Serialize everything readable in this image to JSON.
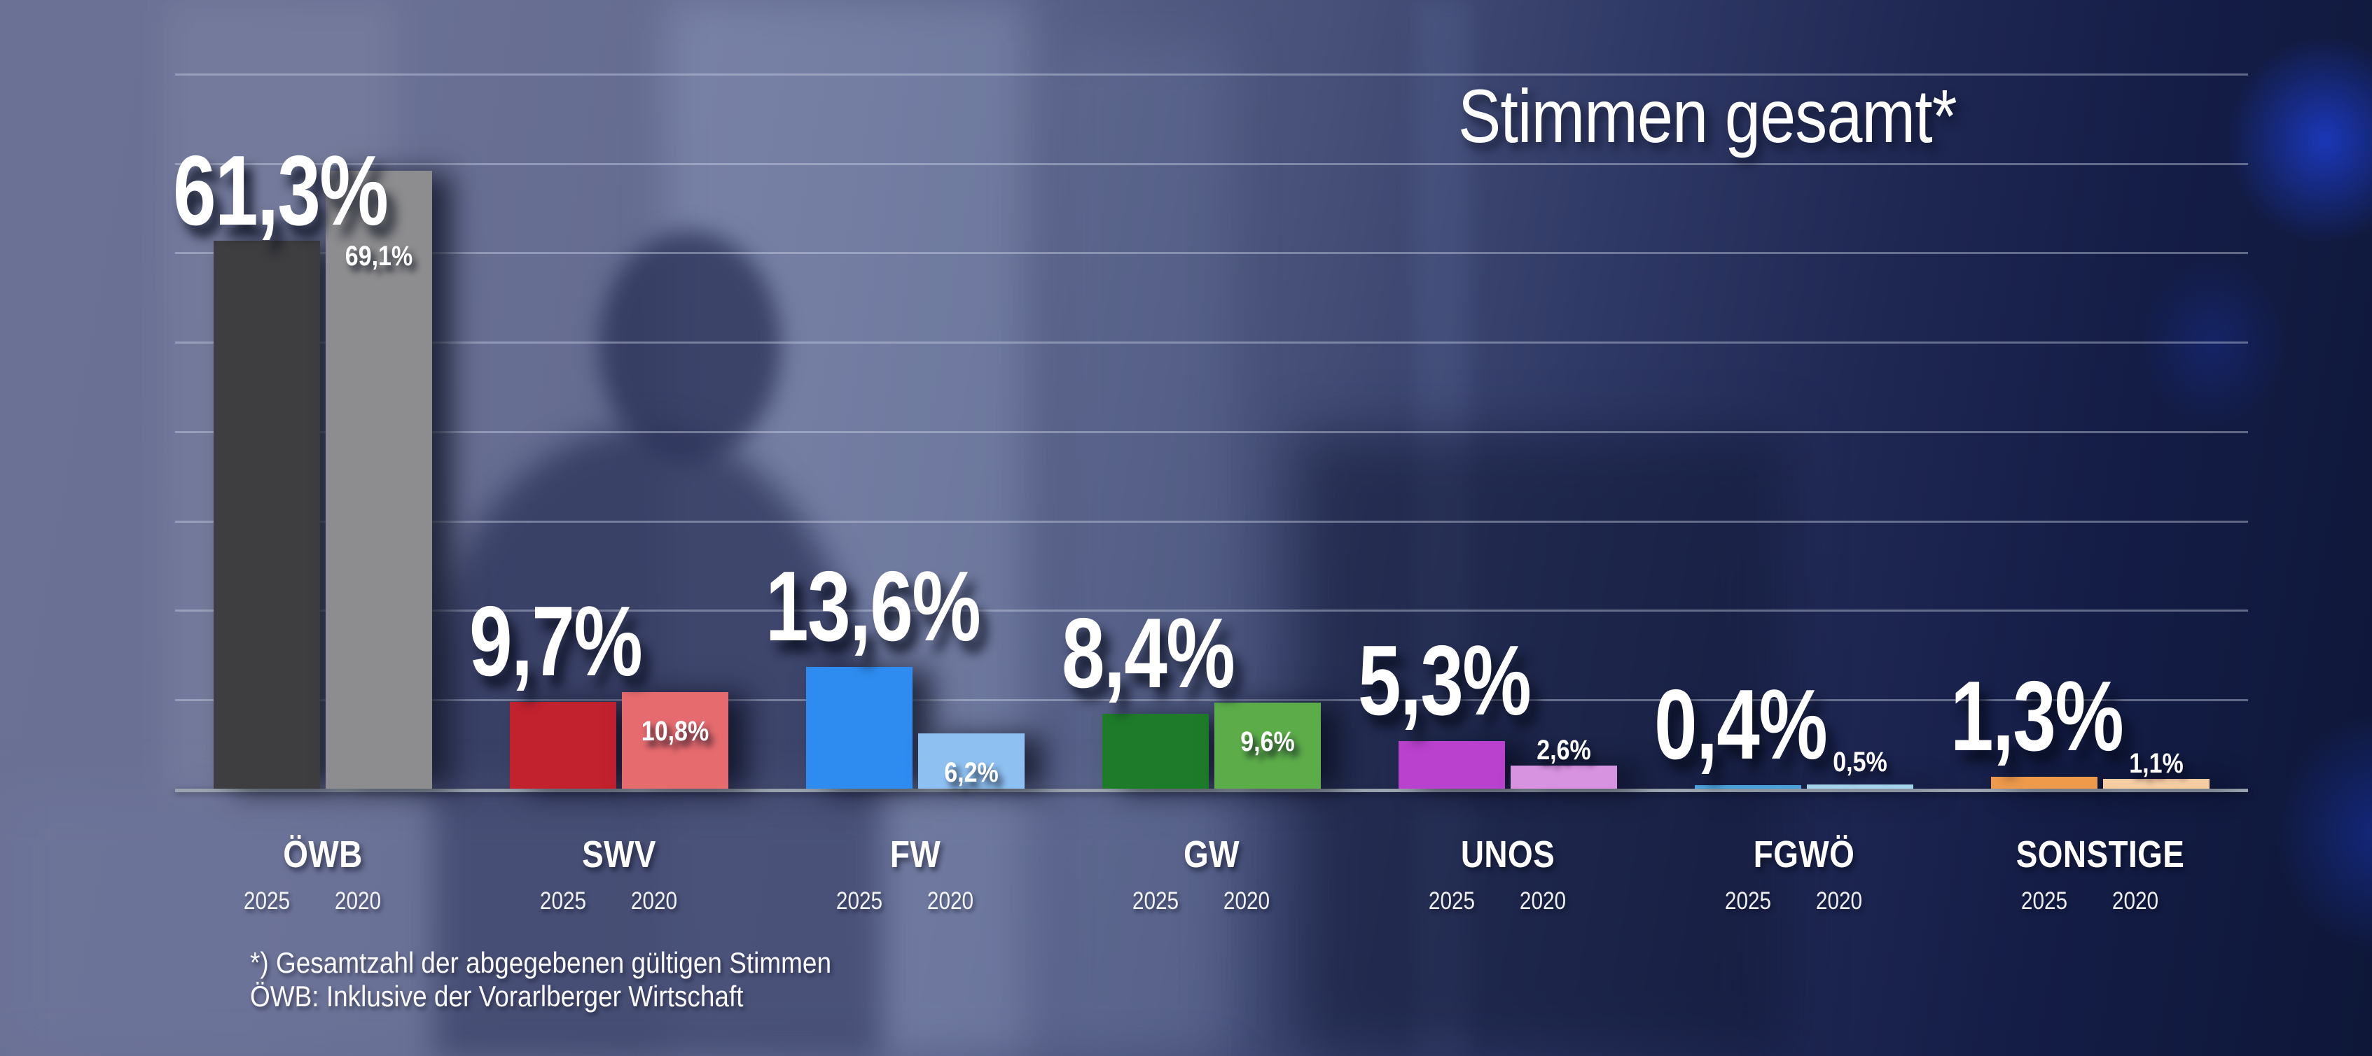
{
  "title": "Stimmen gesamt*",
  "footnotes": {
    "line1": "*) Gesamtzahl der abgegebenen gültigen Stimmen",
    "line2": "ÖWB: Inklusive der Vorarlberger Wirtschaft"
  },
  "chart_data": {
    "type": "bar",
    "title": "Stimmen gesamt*",
    "categories": [
      "ÖWB",
      "SWV",
      "FW",
      "GW",
      "UNOS",
      "FGWÖ",
      "SONSTIGE"
    ],
    "series": [
      {
        "name": "2025",
        "values": [
          61.3,
          9.7,
          13.6,
          8.4,
          5.3,
          0.4,
          1.3
        ],
        "labels": [
          "61,3%",
          "9,7%",
          "13,6%",
          "8,4%",
          "5,3%",
          "0,4%",
          "1,3%"
        ],
        "colors": [
          "#3e3e40",
          "#c2212e",
          "#2e8cf0",
          "#1e7b2a",
          "#ba41ce",
          "#49a2d9",
          "#ef9a4b"
        ]
      },
      {
        "name": "2020",
        "values": [
          69.1,
          10.8,
          6.2,
          9.6,
          2.6,
          0.5,
          1.1
        ],
        "labels": [
          "69,1%",
          "10,8%",
          "6,2%",
          "9,6%",
          "2,6%",
          "0,5%",
          "1,1%"
        ],
        "colors": [
          "#8d8d8f",
          "#e66b6f",
          "#8ec1f2",
          "#5cad49",
          "#d893e0",
          "#a6d2ec",
          "#f6cda3"
        ],
        "label_placement": [
          "inside",
          "inside",
          "inside",
          "inside",
          "above",
          "above",
          "above"
        ]
      }
    ],
    "ylim": [
      0,
      80
    ],
    "grid": "on",
    "grid_step_pct": 10,
    "value_suffix": "%",
    "decimal_separator": ",",
    "legend_position": "years-under-groups"
  },
  "colors": {
    "text": "#ffffff",
    "axis_line": "#9aa3af",
    "gridline": "rgba(205,212,228,0.42)",
    "background_left": "#6b7195",
    "background_right": "#0d1536",
    "glow_blue": "#1c3ccd"
  }
}
